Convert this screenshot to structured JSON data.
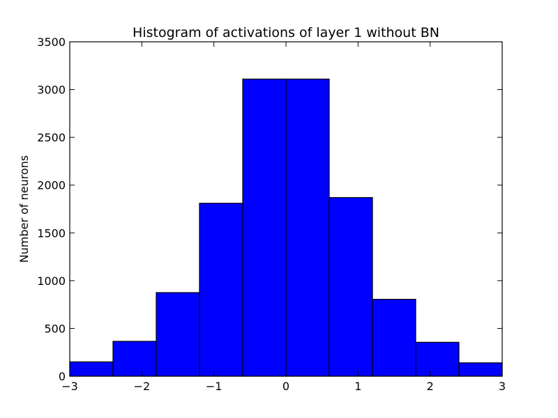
{
  "chart_data": {
    "type": "bar",
    "title": "Histogram of activations of layer 1  without BN",
    "xlabel": "",
    "ylabel": "Number of neurons",
    "xlim": [
      -3,
      3
    ],
    "ylim": [
      0,
      3500
    ],
    "bin_edges": [
      -3,
      -2.4,
      -1.8,
      -1.2,
      -0.6,
      0,
      0.6,
      1.2,
      1.8,
      2.4,
      3
    ],
    "values": [
      150,
      365,
      875,
      1810,
      3110,
      3110,
      1870,
      805,
      355,
      140
    ],
    "xticks": [
      -3,
      -2,
      -1,
      0,
      1,
      2,
      3
    ],
    "xtick_labels": [
      "−3",
      "−2",
      "−1",
      "0",
      "1",
      "2",
      "3"
    ],
    "yticks": [
      0,
      500,
      1000,
      1500,
      2000,
      2500,
      3000,
      3500
    ],
    "ytick_labels": [
      "0",
      "500",
      "1000",
      "1500",
      "2000",
      "2500",
      "3000",
      "3500"
    ],
    "bar_color": "#0000ff",
    "grid": false,
    "legend": "none"
  }
}
